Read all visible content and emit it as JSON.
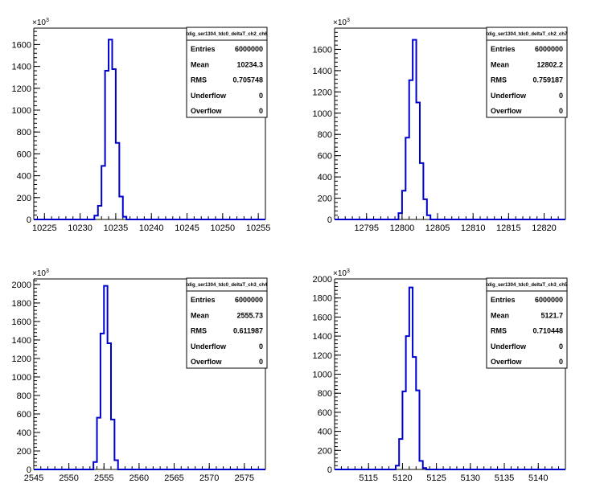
{
  "chart_data": [
    {
      "type": "histogram",
      "title": "tdig_ser1304_tdc0_deltaT_ch2_ch6",
      "y_exponent": "10",
      "y_exponent_power": "3",
      "xlim": [
        10223.5,
        10256.0
      ],
      "ylim": [
        0,
        1750
      ],
      "x_ticks": [
        10225,
        10230,
        10235,
        10240,
        10245,
        10250,
        10255
      ],
      "y_ticks": [
        0,
        200,
        400,
        600,
        800,
        1000,
        1200,
        1400,
        1600
      ],
      "bin_width": 0.5,
      "bins": [
        {
          "x": 10232.0,
          "y": 35
        },
        {
          "x": 10232.5,
          "y": 125
        },
        {
          "x": 10233.0,
          "y": 490
        },
        {
          "x": 10233.5,
          "y": 1360
        },
        {
          "x": 10234.0,
          "y": 1645
        },
        {
          "x": 10234.5,
          "y": 1375
        },
        {
          "x": 10235.0,
          "y": 700
        },
        {
          "x": 10235.5,
          "y": 210
        },
        {
          "x": 10236.0,
          "y": 25
        }
      ],
      "stats": [
        {
          "label": "Entries",
          "value": "6000000"
        },
        {
          "label": "Mean",
          "value": "10234.3"
        },
        {
          "label": "RMS",
          "value": "0.705748"
        },
        {
          "label": "Underflow",
          "value": "0"
        },
        {
          "label": "Overflow",
          "value": "0"
        }
      ]
    },
    {
      "type": "histogram",
      "title": "tdig_ser1304_tdc0_deltaT_ch2_ch7",
      "y_exponent": "10",
      "y_exponent_power": "3",
      "xlim": [
        12790.5,
        12823.0
      ],
      "ylim": [
        0,
        1800
      ],
      "x_ticks": [
        12795,
        12800,
        12805,
        12810,
        12815,
        12820
      ],
      "y_ticks": [
        0,
        200,
        400,
        600,
        800,
        1000,
        1200,
        1400,
        1600
      ],
      "bin_width": 0.5,
      "bins": [
        {
          "x": 12799.5,
          "y": 60
        },
        {
          "x": 12800.0,
          "y": 270
        },
        {
          "x": 12800.5,
          "y": 770
        },
        {
          "x": 12801.0,
          "y": 1310
        },
        {
          "x": 12801.5,
          "y": 1690
        },
        {
          "x": 12802.0,
          "y": 1100
        },
        {
          "x": 12802.5,
          "y": 530
        },
        {
          "x": 12803.0,
          "y": 190
        },
        {
          "x": 12803.5,
          "y": 40
        }
      ],
      "stats": [
        {
          "label": "Entries",
          "value": "6000000"
        },
        {
          "label": "Mean",
          "value": "12802.2"
        },
        {
          "label": "RMS",
          "value": "0.759187"
        },
        {
          "label": "Underflow",
          "value": "0"
        },
        {
          "label": "Overflow",
          "value": "0"
        }
      ]
    },
    {
      "type": "histogram",
      "title": "tdig_ser1304_tdc0_deltaT_ch3_ch4",
      "y_exponent": "10",
      "y_exponent_power": "3",
      "xlim": [
        2545.0,
        2578.0
      ],
      "ylim": [
        0,
        2060
      ],
      "x_ticks": [
        2545,
        2550,
        2555,
        2560,
        2565,
        2570,
        2575
      ],
      "y_ticks": [
        0,
        200,
        400,
        600,
        800,
        1000,
        1200,
        1400,
        1600,
        1800,
        2000
      ],
      "bin_width": 0.5,
      "bins": [
        {
          "x": 2553.5,
          "y": 80
        },
        {
          "x": 2554.0,
          "y": 560
        },
        {
          "x": 2554.5,
          "y": 1470
        },
        {
          "x": 2555.0,
          "y": 1985
        },
        {
          "x": 2555.5,
          "y": 1365
        },
        {
          "x": 2556.0,
          "y": 540
        },
        {
          "x": 2556.5,
          "y": 100
        }
      ],
      "stats": [
        {
          "label": "Entries",
          "value": "6000000"
        },
        {
          "label": "Mean",
          "value": "2555.73"
        },
        {
          "label": "RMS",
          "value": "0.611987"
        },
        {
          "label": "Underflow",
          "value": "0"
        },
        {
          "label": "Overflow",
          "value": "0"
        }
      ]
    },
    {
      "type": "histogram",
      "title": "tdig_ser1304_tdc0_deltaT_ch3_ch5",
      "y_exponent": "10",
      "y_exponent_power": "3",
      "xlim": [
        5110.0,
        5144.0
      ],
      "ylim": [
        0,
        2000
      ],
      "x_ticks": [
        5115,
        5120,
        5125,
        5130,
        5135,
        5140
      ],
      "y_ticks": [
        0,
        200,
        400,
        600,
        800,
        1000,
        1200,
        1400,
        1600,
        1800,
        2000
      ],
      "bin_width": 0.5,
      "bins": [
        {
          "x": 5119.0,
          "y": 40
        },
        {
          "x": 5119.5,
          "y": 320
        },
        {
          "x": 5120.0,
          "y": 820
        },
        {
          "x": 5120.5,
          "y": 1400
        },
        {
          "x": 5121.0,
          "y": 1910
        },
        {
          "x": 5121.5,
          "y": 1180
        },
        {
          "x": 5122.0,
          "y": 830
        },
        {
          "x": 5122.5,
          "y": 90
        },
        {
          "x": 5123.0,
          "y": 15
        }
      ],
      "stats": [
        {
          "label": "Entries",
          "value": "6000000"
        },
        {
          "label": "Mean",
          "value": "5121.7"
        },
        {
          "label": "RMS",
          "value": "0.710448"
        },
        {
          "label": "Underflow",
          "value": "0"
        },
        {
          "label": "Overflow",
          "value": "0"
        }
      ]
    }
  ],
  "colors": {
    "histogram_line": "#0000cc",
    "axis": "#000000",
    "background": "#ffffff"
  }
}
